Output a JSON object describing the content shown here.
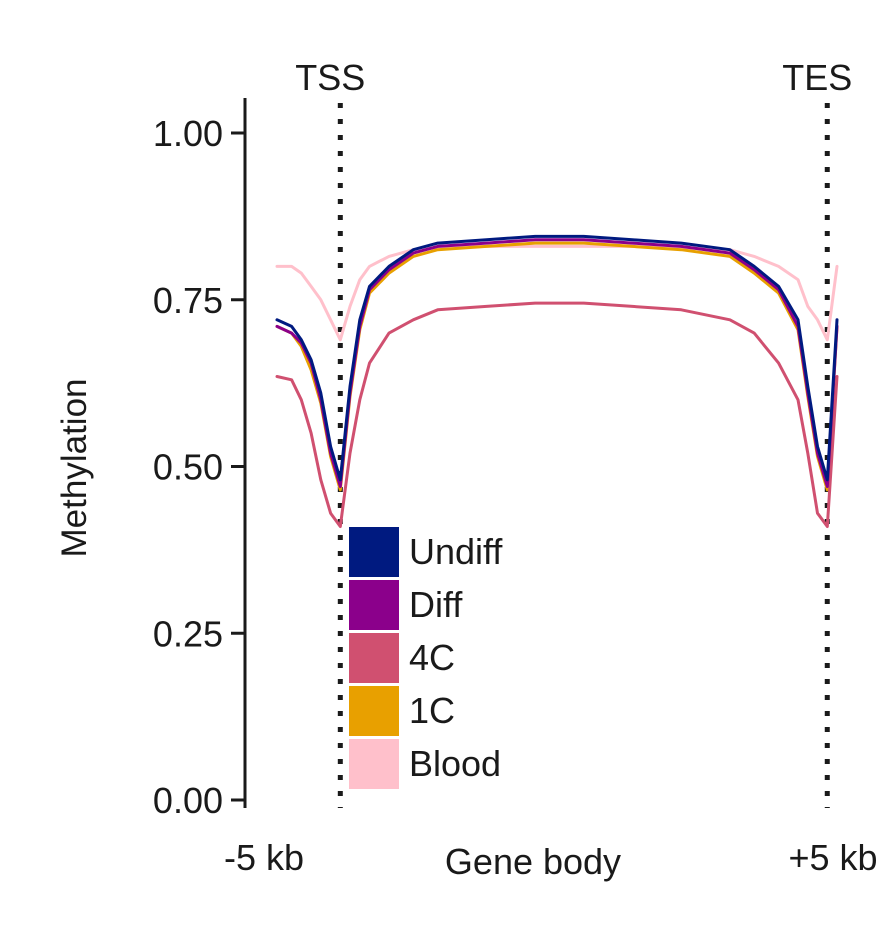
{
  "chart_data": {
    "type": "line",
    "title": "",
    "xlabel": "Gene body",
    "ylabel": "Methylation",
    "ylim": [
      0,
      1
    ],
    "yticks": [
      "0.00",
      "0.25",
      "0.50",
      "0.75",
      "1.00"
    ],
    "ytick_values": [
      0,
      0.25,
      0.5,
      0.75,
      1.0
    ],
    "x_tick_labels": {
      "left": "-5 kb",
      "right": "+5 kb"
    },
    "markers": [
      {
        "label": "TSS",
        "x": 0
      },
      {
        "label": "TES",
        "x": 100
      }
    ],
    "xlim": [
      -13,
      102
    ],
    "x": [
      -13,
      -10,
      -8,
      -6,
      -4,
      -2,
      0,
      2,
      4,
      6,
      10,
      15,
      20,
      30,
      40,
      50,
      60,
      70,
      80,
      85,
      90,
      94,
      96,
      98,
      100,
      102
    ],
    "series": [
      {
        "name": "Undiff",
        "color": "#001a80",
        "values": [
          0.72,
          0.71,
          0.69,
          0.66,
          0.61,
          0.53,
          0.48,
          0.62,
          0.72,
          0.77,
          0.8,
          0.825,
          0.835,
          0.84,
          0.845,
          0.845,
          0.84,
          0.835,
          0.825,
          0.8,
          0.77,
          0.72,
          0.62,
          0.53,
          0.48,
          0.72
        ]
      },
      {
        "name": "Diff",
        "color": "#8b008b",
        "values": [
          0.71,
          0.7,
          0.685,
          0.655,
          0.6,
          0.52,
          0.47,
          0.61,
          0.71,
          0.765,
          0.795,
          0.82,
          0.83,
          0.835,
          0.84,
          0.84,
          0.835,
          0.83,
          0.82,
          0.795,
          0.765,
          0.71,
          0.61,
          0.52,
          0.47,
          0.71
        ]
      },
      {
        "name": "4C",
        "color": "#d05070",
        "values": [
          0.635,
          0.63,
          0.6,
          0.55,
          0.48,
          0.43,
          0.41,
          0.52,
          0.6,
          0.655,
          0.7,
          0.72,
          0.735,
          0.74,
          0.745,
          0.745,
          0.74,
          0.735,
          0.72,
          0.7,
          0.655,
          0.6,
          0.52,
          0.43,
          0.41,
          0.635
        ]
      },
      {
        "name": "1C",
        "color": "#e8a000",
        "values": [
          0.71,
          0.7,
          0.68,
          0.645,
          0.595,
          0.515,
          0.465,
          0.605,
          0.705,
          0.76,
          0.79,
          0.815,
          0.825,
          0.83,
          0.835,
          0.835,
          0.83,
          0.825,
          0.815,
          0.79,
          0.76,
          0.705,
          0.605,
          0.515,
          0.465,
          0.71
        ]
      },
      {
        "name": "Blood",
        "color": "#ffc0cb",
        "values": [
          0.8,
          0.8,
          0.79,
          0.77,
          0.75,
          0.72,
          0.69,
          0.74,
          0.78,
          0.8,
          0.815,
          0.825,
          0.828,
          0.83,
          0.83,
          0.83,
          0.83,
          0.828,
          0.825,
          0.815,
          0.8,
          0.78,
          0.74,
          0.72,
          0.69,
          0.8
        ]
      }
    ],
    "legend": {
      "placement": "bottom-center"
    },
    "grid": false
  }
}
